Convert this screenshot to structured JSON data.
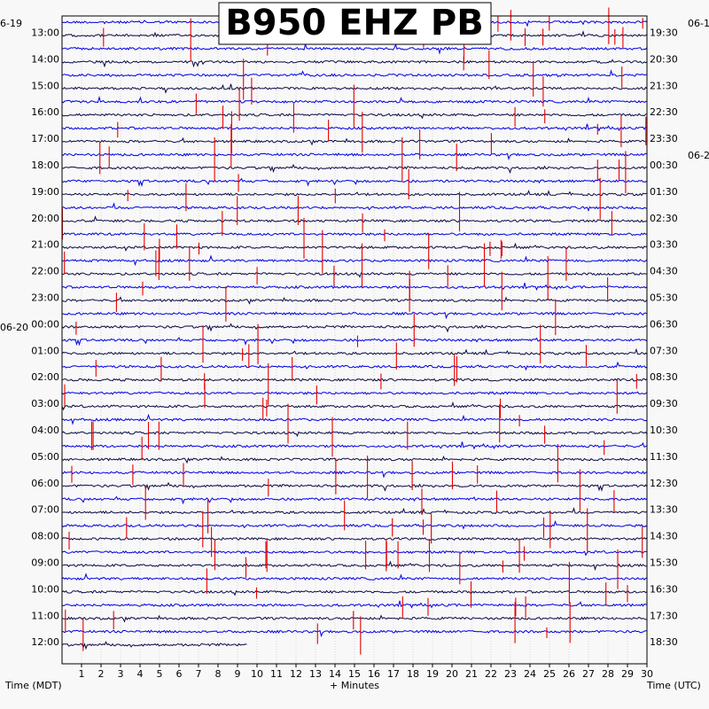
{
  "chart_data": {
    "type": "line",
    "title": "B950 EHZ PB",
    "xlabel": "+ Minutes",
    "left_axis_label": "Time (MDT)",
    "right_axis_label": "Time (UTC)",
    "x_ticks": [
      "1",
      "2",
      "3",
      "4",
      "5",
      "6",
      "7",
      "8",
      "9",
      "10",
      "11",
      "12",
      "13",
      "14",
      "15",
      "16",
      "17",
      "18",
      "19",
      "20",
      "21",
      "22",
      "23",
      "24",
      "25",
      "26",
      "27",
      "28",
      "29",
      "30"
    ],
    "xlim": [
      0,
      30
    ],
    "rows_per_hour": 2,
    "trace_colors": [
      "#0000e6",
      "#0a0a46"
    ],
    "event_color": "#e60000",
    "grid": true,
    "left_date_labels": [
      "6-19",
      "06-20"
    ],
    "right_date_labels": [
      "06-1",
      "06-2"
    ],
    "left_hour_labels": [
      "13:00",
      "14:00",
      "15:00",
      "16:00",
      "17:00",
      "18:00",
      "19:00",
      "20:00",
      "21:00",
      "22:00",
      "23:00",
      "00:00",
      "01:00",
      "02:00",
      "03:00",
      "04:00",
      "05:00",
      "06:00",
      "07:00",
      "08:00",
      "09:00",
      "10:00",
      "11:00",
      "12:00"
    ],
    "right_hour_labels": [
      "19:30",
      "20:30",
      "21:30",
      "22:30",
      "23:30",
      "00:30",
      "01:30",
      "02:30",
      "03:30",
      "04:30",
      "05:30",
      "06:30",
      "07:30",
      "08:30",
      "09:30",
      "10:30",
      "11:30",
      "12:30",
      "13:30",
      "14:30",
      "15:30",
      "16:30",
      "17:30",
      "18:30"
    ],
    "last_row_end_minute": 9.5
  }
}
